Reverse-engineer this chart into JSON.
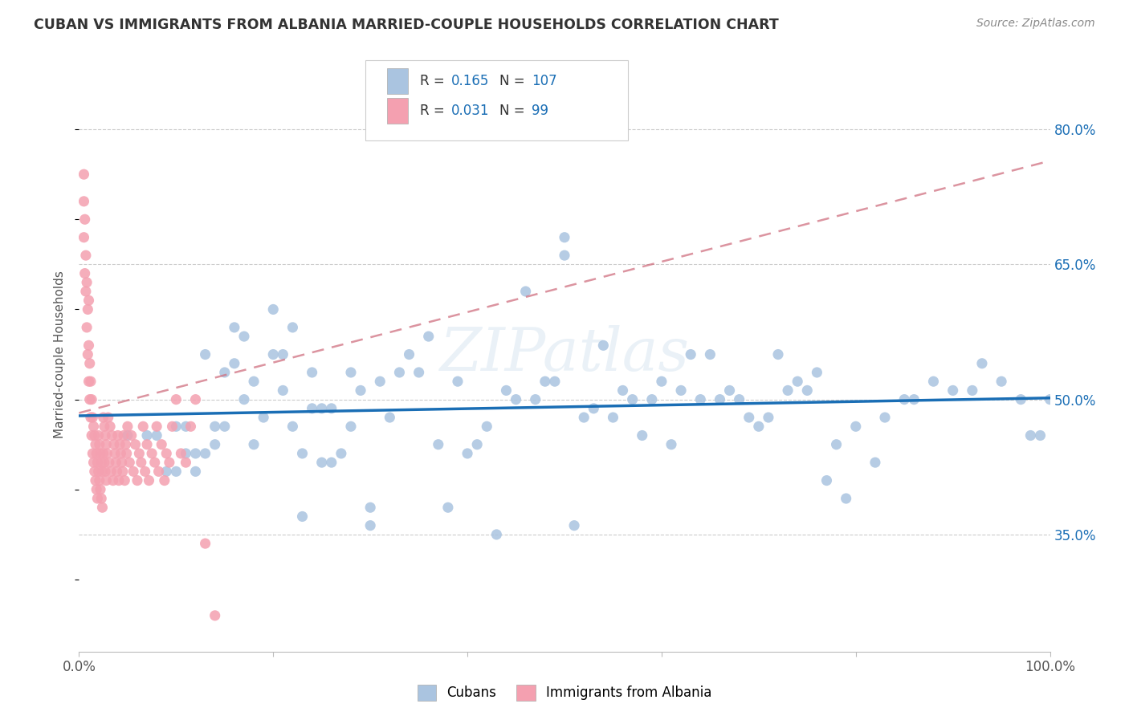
{
  "title": "CUBAN VS IMMIGRANTS FROM ALBANIA MARRIED-COUPLE HOUSEHOLDS CORRELATION CHART",
  "source": "Source: ZipAtlas.com",
  "ylabel": "Married-couple Households",
  "ytick_labels": [
    "35.0%",
    "50.0%",
    "65.0%",
    "80.0%"
  ],
  "ytick_values": [
    0.35,
    0.5,
    0.65,
    0.8
  ],
  "xlim": [
    0.0,
    1.0
  ],
  "ylim": [
    0.22,
    0.88
  ],
  "legend_r_cubans": "0.165",
  "legend_n_cubans": "107",
  "legend_r_albania": "0.031",
  "legend_n_albania": "99",
  "cubans_color": "#aac4e0",
  "albania_color": "#f4a0b0",
  "trendline_cubans_color": "#1a6eb5",
  "trendline_albania_color": "#d07080",
  "watermark": "ZIPatlas",
  "cubans_x": [
    0.05,
    0.07,
    0.08,
    0.09,
    0.1,
    0.1,
    0.11,
    0.11,
    0.12,
    0.12,
    0.13,
    0.13,
    0.14,
    0.14,
    0.15,
    0.15,
    0.16,
    0.16,
    0.17,
    0.17,
    0.18,
    0.18,
    0.19,
    0.2,
    0.2,
    0.21,
    0.21,
    0.22,
    0.22,
    0.23,
    0.23,
    0.24,
    0.24,
    0.25,
    0.25,
    0.26,
    0.26,
    0.27,
    0.28,
    0.28,
    0.29,
    0.3,
    0.3,
    0.31,
    0.32,
    0.33,
    0.34,
    0.35,
    0.36,
    0.37,
    0.38,
    0.39,
    0.4,
    0.41,
    0.42,
    0.43,
    0.44,
    0.45,
    0.46,
    0.47,
    0.48,
    0.49,
    0.5,
    0.51,
    0.52,
    0.53,
    0.54,
    0.55,
    0.56,
    0.57,
    0.58,
    0.59,
    0.6,
    0.61,
    0.62,
    0.63,
    0.64,
    0.65,
    0.66,
    0.67,
    0.68,
    0.69,
    0.7,
    0.71,
    0.72,
    0.73,
    0.74,
    0.75,
    0.76,
    0.77,
    0.78,
    0.79,
    0.8,
    0.82,
    0.83,
    0.85,
    0.86,
    0.88,
    0.9,
    0.92,
    0.93,
    0.95,
    0.97,
    0.98,
    0.99,
    1.0,
    0.5
  ],
  "cubans_y": [
    0.46,
    0.46,
    0.46,
    0.42,
    0.47,
    0.42,
    0.47,
    0.44,
    0.44,
    0.42,
    0.55,
    0.44,
    0.45,
    0.47,
    0.53,
    0.47,
    0.58,
    0.54,
    0.57,
    0.5,
    0.52,
    0.45,
    0.48,
    0.6,
    0.55,
    0.55,
    0.51,
    0.58,
    0.47,
    0.44,
    0.37,
    0.53,
    0.49,
    0.49,
    0.43,
    0.49,
    0.43,
    0.44,
    0.47,
    0.53,
    0.51,
    0.36,
    0.38,
    0.52,
    0.48,
    0.53,
    0.55,
    0.53,
    0.57,
    0.45,
    0.38,
    0.52,
    0.44,
    0.45,
    0.47,
    0.35,
    0.51,
    0.5,
    0.62,
    0.5,
    0.52,
    0.52,
    0.66,
    0.36,
    0.48,
    0.49,
    0.56,
    0.48,
    0.51,
    0.5,
    0.46,
    0.5,
    0.52,
    0.45,
    0.51,
    0.55,
    0.5,
    0.55,
    0.5,
    0.51,
    0.5,
    0.48,
    0.47,
    0.48,
    0.55,
    0.51,
    0.52,
    0.51,
    0.53,
    0.41,
    0.45,
    0.39,
    0.47,
    0.43,
    0.48,
    0.5,
    0.5,
    0.52,
    0.51,
    0.51,
    0.54,
    0.52,
    0.5,
    0.46,
    0.46,
    0.5,
    0.68
  ],
  "albania_x": [
    0.005,
    0.005,
    0.005,
    0.006,
    0.006,
    0.007,
    0.007,
    0.008,
    0.008,
    0.009,
    0.009,
    0.01,
    0.01,
    0.01,
    0.011,
    0.011,
    0.012,
    0.012,
    0.013,
    0.013,
    0.014,
    0.014,
    0.015,
    0.015,
    0.016,
    0.016,
    0.017,
    0.017,
    0.018,
    0.018,
    0.019,
    0.019,
    0.02,
    0.02,
    0.021,
    0.021,
    0.022,
    0.022,
    0.023,
    0.023,
    0.024,
    0.024,
    0.025,
    0.025,
    0.026,
    0.026,
    0.027,
    0.027,
    0.028,
    0.028,
    0.029,
    0.03,
    0.031,
    0.032,
    0.033,
    0.034,
    0.035,
    0.036,
    0.037,
    0.038,
    0.039,
    0.04,
    0.041,
    0.042,
    0.043,
    0.044,
    0.045,
    0.046,
    0.047,
    0.048,
    0.049,
    0.05,
    0.052,
    0.054,
    0.056,
    0.058,
    0.06,
    0.062,
    0.064,
    0.066,
    0.068,
    0.07,
    0.072,
    0.075,
    0.078,
    0.08,
    0.082,
    0.085,
    0.088,
    0.09,
    0.093,
    0.096,
    0.1,
    0.105,
    0.11,
    0.115,
    0.12,
    0.13,
    0.14
  ],
  "albania_y": [
    0.68,
    0.72,
    0.75,
    0.64,
    0.7,
    0.62,
    0.66,
    0.58,
    0.63,
    0.55,
    0.6,
    0.52,
    0.56,
    0.61,
    0.5,
    0.54,
    0.48,
    0.52,
    0.46,
    0.5,
    0.44,
    0.48,
    0.43,
    0.47,
    0.42,
    0.46,
    0.41,
    0.45,
    0.4,
    0.44,
    0.39,
    0.43,
    0.42,
    0.46,
    0.41,
    0.45,
    0.4,
    0.44,
    0.39,
    0.43,
    0.38,
    0.42,
    0.48,
    0.44,
    0.47,
    0.43,
    0.46,
    0.42,
    0.45,
    0.41,
    0.44,
    0.48,
    0.43,
    0.47,
    0.42,
    0.46,
    0.41,
    0.45,
    0.44,
    0.43,
    0.42,
    0.46,
    0.41,
    0.45,
    0.44,
    0.43,
    0.42,
    0.46,
    0.41,
    0.45,
    0.44,
    0.47,
    0.43,
    0.46,
    0.42,
    0.45,
    0.41,
    0.44,
    0.43,
    0.47,
    0.42,
    0.45,
    0.41,
    0.44,
    0.43,
    0.47,
    0.42,
    0.45,
    0.41,
    0.44,
    0.43,
    0.47,
    0.5,
    0.44,
    0.43,
    0.47,
    0.5,
    0.34,
    0.26
  ]
}
